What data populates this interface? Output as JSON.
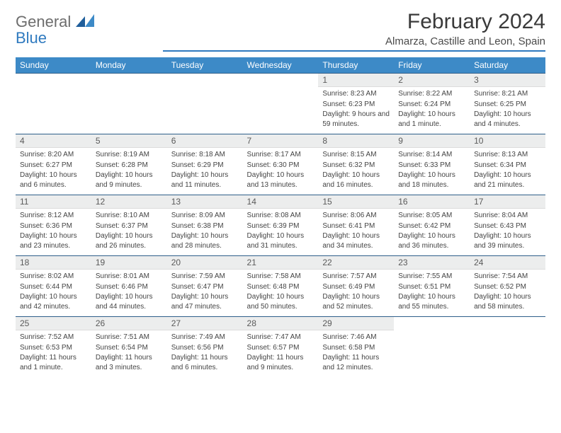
{
  "brand": {
    "name1": "General",
    "name2": "Blue"
  },
  "title": "February 2024",
  "location": "Almarza, Castille and Leon, Spain",
  "colors": {
    "header_bg": "#3d8ac7",
    "accent": "#2f7abf",
    "daynum_bg": "#eceded",
    "text": "#444444",
    "title_text": "#3a3a3a"
  },
  "day_names": [
    "Sunday",
    "Monday",
    "Tuesday",
    "Wednesday",
    "Thursday",
    "Friday",
    "Saturday"
  ],
  "weeks": [
    [
      null,
      null,
      null,
      null,
      {
        "n": "1",
        "sr": "Sunrise: 8:23 AM",
        "ss": "Sunset: 6:23 PM",
        "dl": "Daylight: 9 hours and 59 minutes."
      },
      {
        "n": "2",
        "sr": "Sunrise: 8:22 AM",
        "ss": "Sunset: 6:24 PM",
        "dl": "Daylight: 10 hours and 1 minute."
      },
      {
        "n": "3",
        "sr": "Sunrise: 8:21 AM",
        "ss": "Sunset: 6:25 PM",
        "dl": "Daylight: 10 hours and 4 minutes."
      }
    ],
    [
      {
        "n": "4",
        "sr": "Sunrise: 8:20 AM",
        "ss": "Sunset: 6:27 PM",
        "dl": "Daylight: 10 hours and 6 minutes."
      },
      {
        "n": "5",
        "sr": "Sunrise: 8:19 AM",
        "ss": "Sunset: 6:28 PM",
        "dl": "Daylight: 10 hours and 9 minutes."
      },
      {
        "n": "6",
        "sr": "Sunrise: 8:18 AM",
        "ss": "Sunset: 6:29 PM",
        "dl": "Daylight: 10 hours and 11 minutes."
      },
      {
        "n": "7",
        "sr": "Sunrise: 8:17 AM",
        "ss": "Sunset: 6:30 PM",
        "dl": "Daylight: 10 hours and 13 minutes."
      },
      {
        "n": "8",
        "sr": "Sunrise: 8:15 AM",
        "ss": "Sunset: 6:32 PM",
        "dl": "Daylight: 10 hours and 16 minutes."
      },
      {
        "n": "9",
        "sr": "Sunrise: 8:14 AM",
        "ss": "Sunset: 6:33 PM",
        "dl": "Daylight: 10 hours and 18 minutes."
      },
      {
        "n": "10",
        "sr": "Sunrise: 8:13 AM",
        "ss": "Sunset: 6:34 PM",
        "dl": "Daylight: 10 hours and 21 minutes."
      }
    ],
    [
      {
        "n": "11",
        "sr": "Sunrise: 8:12 AM",
        "ss": "Sunset: 6:36 PM",
        "dl": "Daylight: 10 hours and 23 minutes."
      },
      {
        "n": "12",
        "sr": "Sunrise: 8:10 AM",
        "ss": "Sunset: 6:37 PM",
        "dl": "Daylight: 10 hours and 26 minutes."
      },
      {
        "n": "13",
        "sr": "Sunrise: 8:09 AM",
        "ss": "Sunset: 6:38 PM",
        "dl": "Daylight: 10 hours and 28 minutes."
      },
      {
        "n": "14",
        "sr": "Sunrise: 8:08 AM",
        "ss": "Sunset: 6:39 PM",
        "dl": "Daylight: 10 hours and 31 minutes."
      },
      {
        "n": "15",
        "sr": "Sunrise: 8:06 AM",
        "ss": "Sunset: 6:41 PM",
        "dl": "Daylight: 10 hours and 34 minutes."
      },
      {
        "n": "16",
        "sr": "Sunrise: 8:05 AM",
        "ss": "Sunset: 6:42 PM",
        "dl": "Daylight: 10 hours and 36 minutes."
      },
      {
        "n": "17",
        "sr": "Sunrise: 8:04 AM",
        "ss": "Sunset: 6:43 PM",
        "dl": "Daylight: 10 hours and 39 minutes."
      }
    ],
    [
      {
        "n": "18",
        "sr": "Sunrise: 8:02 AM",
        "ss": "Sunset: 6:44 PM",
        "dl": "Daylight: 10 hours and 42 minutes."
      },
      {
        "n": "19",
        "sr": "Sunrise: 8:01 AM",
        "ss": "Sunset: 6:46 PM",
        "dl": "Daylight: 10 hours and 44 minutes."
      },
      {
        "n": "20",
        "sr": "Sunrise: 7:59 AM",
        "ss": "Sunset: 6:47 PM",
        "dl": "Daylight: 10 hours and 47 minutes."
      },
      {
        "n": "21",
        "sr": "Sunrise: 7:58 AM",
        "ss": "Sunset: 6:48 PM",
        "dl": "Daylight: 10 hours and 50 minutes."
      },
      {
        "n": "22",
        "sr": "Sunrise: 7:57 AM",
        "ss": "Sunset: 6:49 PM",
        "dl": "Daylight: 10 hours and 52 minutes."
      },
      {
        "n": "23",
        "sr": "Sunrise: 7:55 AM",
        "ss": "Sunset: 6:51 PM",
        "dl": "Daylight: 10 hours and 55 minutes."
      },
      {
        "n": "24",
        "sr": "Sunrise: 7:54 AM",
        "ss": "Sunset: 6:52 PM",
        "dl": "Daylight: 10 hours and 58 minutes."
      }
    ],
    [
      {
        "n": "25",
        "sr": "Sunrise: 7:52 AM",
        "ss": "Sunset: 6:53 PM",
        "dl": "Daylight: 11 hours and 1 minute."
      },
      {
        "n": "26",
        "sr": "Sunrise: 7:51 AM",
        "ss": "Sunset: 6:54 PM",
        "dl": "Daylight: 11 hours and 3 minutes."
      },
      {
        "n": "27",
        "sr": "Sunrise: 7:49 AM",
        "ss": "Sunset: 6:56 PM",
        "dl": "Daylight: 11 hours and 6 minutes."
      },
      {
        "n": "28",
        "sr": "Sunrise: 7:47 AM",
        "ss": "Sunset: 6:57 PM",
        "dl": "Daylight: 11 hours and 9 minutes."
      },
      {
        "n": "29",
        "sr": "Sunrise: 7:46 AM",
        "ss": "Sunset: 6:58 PM",
        "dl": "Daylight: 11 hours and 12 minutes."
      },
      null,
      null
    ]
  ]
}
